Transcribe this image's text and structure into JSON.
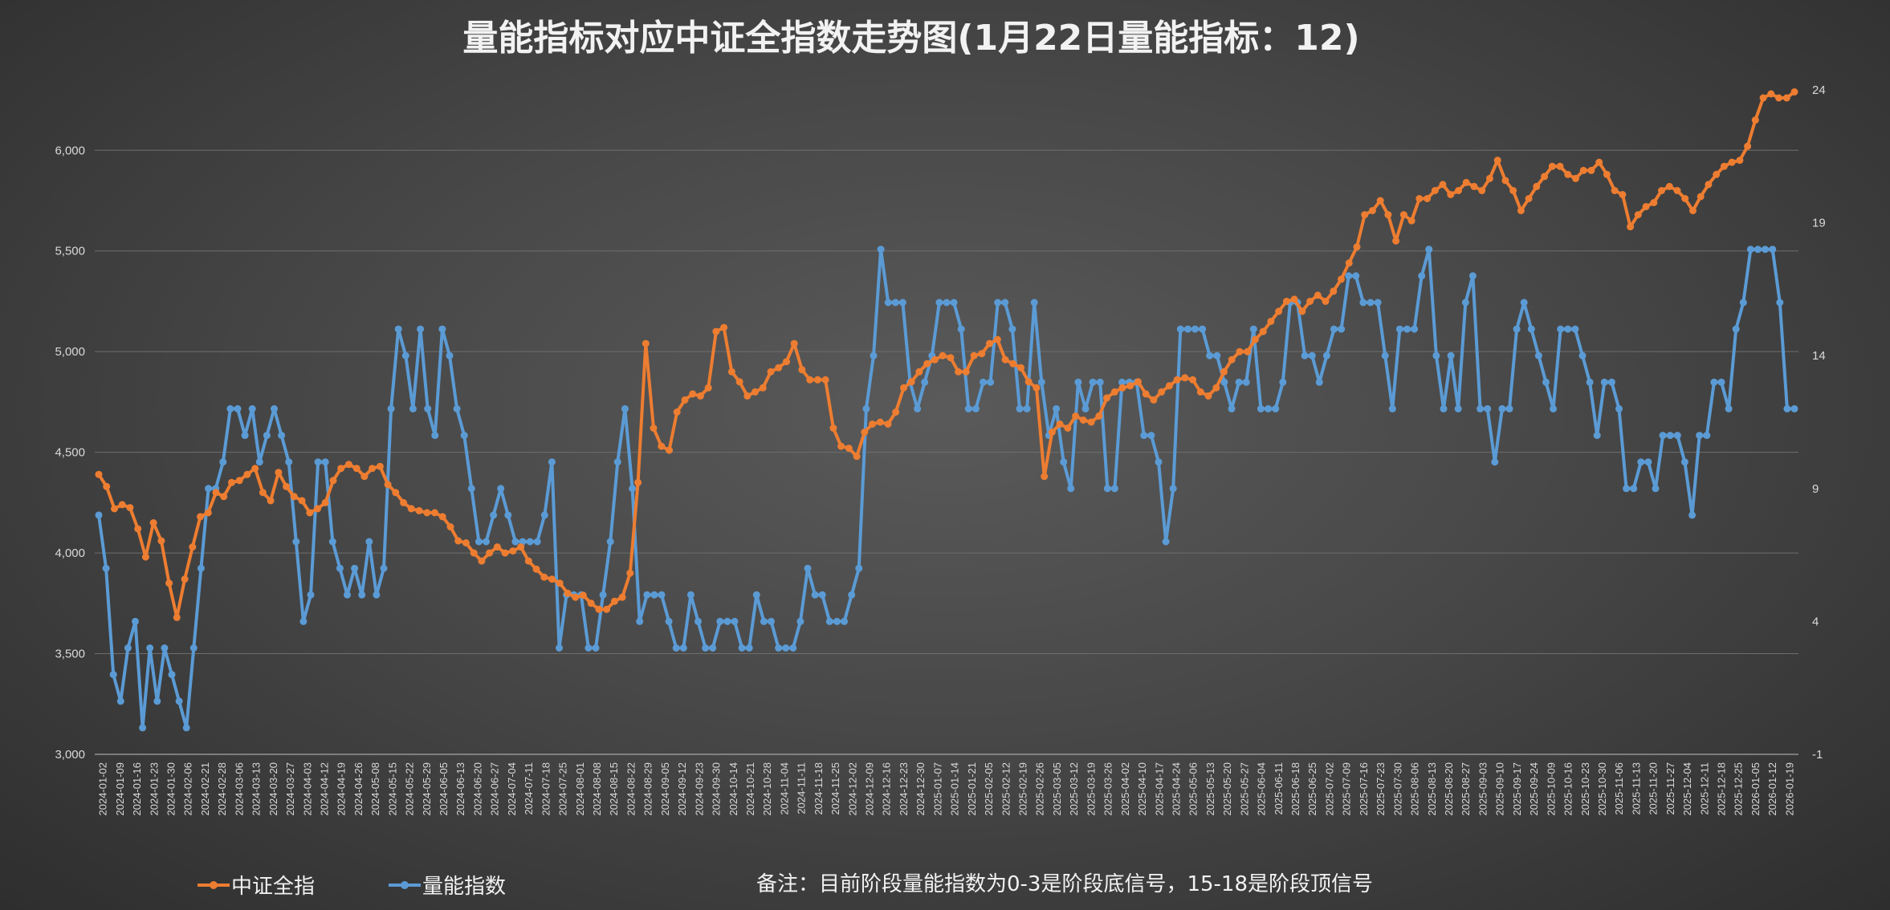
{
  "chart_data": {
    "type": "line",
    "title": "量能指标对应中证全指数走势图(1月22日量能指标：12)",
    "note": "备注：目前阶段量能指数为0-3是阶段底信号，15-18是阶段顶信号",
    "legend_position": "bottom-left",
    "grid": true,
    "y_left": {
      "ylim": [
        3000,
        6300
      ],
      "ticks": [
        3000,
        3500,
        4000,
        4500,
        5000,
        5500,
        6000
      ],
      "tick_labels": [
        "3,000",
        "3,500",
        "4,000",
        "4,500",
        "5,000",
        "5,500",
        "6,000"
      ]
    },
    "y_right": {
      "ylim": [
        -1,
        24
      ],
      "ticks": [
        -1,
        4,
        9,
        14,
        19,
        24
      ],
      "tick_labels": [
        "-1",
        "4",
        "9",
        "14",
        "19",
        "24"
      ]
    },
    "x_tick_labels": [
      "2024-01-02",
      "2024-01-09",
      "2024-01-16",
      "2024-01-23",
      "2024-01-30",
      "2024-02-06",
      "2024-02-21",
      "2024-02-28",
      "2024-03-06",
      "2024-03-13",
      "2024-03-20",
      "2024-03-27",
      "2024-04-03",
      "2024-04-12",
      "2024-04-19",
      "2024-04-26",
      "2024-05-08",
      "2024-05-15",
      "2024-05-22",
      "2024-05-29",
      "2024-06-05",
      "2024-06-13",
      "2024-06-20",
      "2024-06-27",
      "2024-07-04",
      "2024-07-11",
      "2024-07-18",
      "2024-07-25",
      "2024-08-01",
      "2024-08-08",
      "2024-08-15",
      "2024-08-22",
      "2024-08-29",
      "2024-09-05",
      "2024-09-12",
      "2024-09-23",
      "2024-09-30",
      "2024-10-14",
      "2024-10-21",
      "2024-10-28",
      "2024-11-04",
      "2024-11-11",
      "2024-11-18",
      "2024-11-25",
      "2024-12-02",
      "2024-12-09",
      "2024-12-16",
      "2024-12-23",
      "2024-12-30",
      "2025-01-07",
      "2025-01-14",
      "2025-01-21",
      "2025-02-05",
      "2025-02-12",
      "2025-02-19",
      "2025-02-26",
      "2025-03-05",
      "2025-03-12",
      "2025-03-19",
      "2025-03-26",
      "2025-04-02",
      "2025-04-10",
      "2025-04-17",
      "2025-04-24",
      "2025-05-06",
      "2025-05-13",
      "2025-05-20",
      "2025-05-27",
      "2025-06-04",
      "2025-06-11",
      "2025-06-18",
      "2025-06-25",
      "2025-07-02",
      "2025-07-09",
      "2025-07-16",
      "2025-07-23",
      "2025-07-30",
      "2025-08-06",
      "2025-08-13",
      "2025-08-20",
      "2025-08-27",
      "2025-09-03",
      "2025-09-10",
      "2025-09-17",
      "2025-09-24",
      "2025-10-09",
      "2025-10-16",
      "2025-10-23",
      "2025-10-30",
      "2025-11-06",
      "2025-11-13",
      "2025-11-20",
      "2025-11-27",
      "2025-12-04",
      "2025-12-11",
      "2025-12-18",
      "2025-12-25",
      "2026-01-05",
      "2026-01-12",
      "2026-01-19"
    ],
    "series": [
      {
        "name": "中证全指",
        "axis": "left",
        "color": "#ed7d31",
        "values": [
          4390,
          4330,
          4220,
          4240,
          4225,
          4120,
          3980,
          4150,
          4060,
          3850,
          3680,
          3870,
          4030,
          4180,
          4200,
          4300,
          4280,
          4350,
          4360,
          4390,
          4420,
          4300,
          4260,
          4400,
          4330,
          4280,
          4260,
          4200,
          4220,
          4250,
          4360,
          4420,
          4440,
          4420,
          4380,
          4420,
          4430,
          4340,
          4300,
          4250,
          4220,
          4210,
          4200,
          4200,
          4180,
          4130,
          4060,
          4050,
          4000,
          3960,
          4000,
          4030,
          4000,
          4010,
          4030,
          3960,
          3920,
          3880,
          3870,
          3850,
          3800,
          3780,
          3790,
          3750,
          3720,
          3720,
          3760,
          3780,
          3900,
          4350,
          5040,
          4620,
          4530,
          4510,
          4700,
          4760,
          4790,
          4780,
          4820,
          5100,
          5120,
          4900,
          4850,
          4780,
          4800,
          4820,
          4900,
          4920,
          4950,
          5040,
          4910,
          4860,
          4860,
          4860,
          4620,
          4530,
          4520,
          4480,
          4600,
          4640,
          4650,
          4640,
          4700,
          4820,
          4850,
          4900,
          4940,
          4960,
          4980,
          4970,
          4900,
          4900,
          4980,
          4990,
          5040,
          5060,
          4960,
          4940,
          4920,
          4850,
          4820,
          4380,
          4600,
          4640,
          4620,
          4680,
          4660,
          4650,
          4680,
          4770,
          4800,
          4820,
          4830,
          4850,
          4790,
          4760,
          4800,
          4830,
          4860,
          4870,
          4860,
          4800,
          4780,
          4820,
          4900,
          4960,
          5000,
          5000,
          5060,
          5100,
          5150,
          5200,
          5250,
          5260,
          5200,
          5250,
          5280,
          5250,
          5300,
          5360,
          5440,
          5520,
          5680,
          5700,
          5750,
          5680,
          5550,
          5680,
          5650,
          5760,
          5760,
          5800,
          5830,
          5780,
          5800,
          5840,
          5820,
          5800,
          5860,
          5950,
          5850,
          5800,
          5700,
          5760,
          5820,
          5870,
          5920,
          5920,
          5880,
          5860,
          5900,
          5900,
          5940,
          5880,
          5800,
          5780,
          5620,
          5680,
          5720,
          5740,
          5800,
          5820,
          5800,
          5760,
          5700,
          5770,
          5830,
          5880,
          5920,
          5940,
          5950,
          6020,
          6150,
          6260,
          6280,
          6260,
          6260,
          6290
        ]
      },
      {
        "name": "量能指数",
        "axis": "right",
        "color": "#5b9bd5",
        "values": [
          8,
          6,
          2,
          1,
          3,
          4,
          0,
          3,
          1,
          3,
          2,
          1,
          0,
          3,
          6,
          9,
          9,
          10,
          12,
          12,
          11,
          12,
          10,
          11,
          12,
          11,
          10,
          7,
          4,
          5,
          10,
          10,
          7,
          6,
          5,
          6,
          5,
          7,
          5,
          6,
          12,
          15,
          14,
          12,
          15,
          12,
          11,
          15,
          14,
          12,
          11,
          9,
          7,
          7,
          8,
          9,
          8,
          7,
          7,
          7,
          7,
          8,
          10,
          3,
          5,
          5,
          5,
          3,
          3,
          5,
          7,
          10,
          12,
          9,
          4,
          5,
          5,
          5,
          4,
          3,
          3,
          5,
          4,
          3,
          3,
          4,
          4,
          4,
          3,
          3,
          5,
          4,
          4,
          3,
          3,
          3,
          4,
          6,
          5,
          5,
          4,
          4,
          4,
          5,
          6,
          12,
          14,
          18,
          16,
          16,
          16,
          13,
          12,
          13,
          14,
          16,
          16,
          16,
          15,
          12,
          12,
          13,
          13,
          16,
          16,
          15,
          12,
          12,
          16,
          13,
          11,
          12,
          10,
          9,
          13,
          12,
          13,
          13,
          9,
          9,
          13,
          13,
          13,
          11,
          11,
          10,
          7,
          9,
          15,
          15,
          15,
          15,
          14,
          14,
          13,
          12,
          13,
          13,
          15,
          12,
          12,
          12,
          13,
          16,
          16,
          14,
          14,
          13,
          14,
          15,
          15,
          17,
          17,
          16,
          16,
          16,
          14,
          12,
          15,
          15,
          15,
          17,
          18,
          14,
          12,
          14,
          12,
          16,
          17,
          12,
          12,
          10,
          12,
          12,
          15,
          16,
          15,
          14,
          13,
          12,
          15,
          15,
          15,
          14,
          13,
          11,
          13,
          13,
          12,
          9,
          9,
          10,
          10,
          9,
          11,
          11,
          11,
          10,
          8,
          11,
          11,
          13,
          13,
          12,
          15,
          16,
          18,
          18,
          18,
          18,
          16,
          12,
          12
        ]
      }
    ]
  }
}
